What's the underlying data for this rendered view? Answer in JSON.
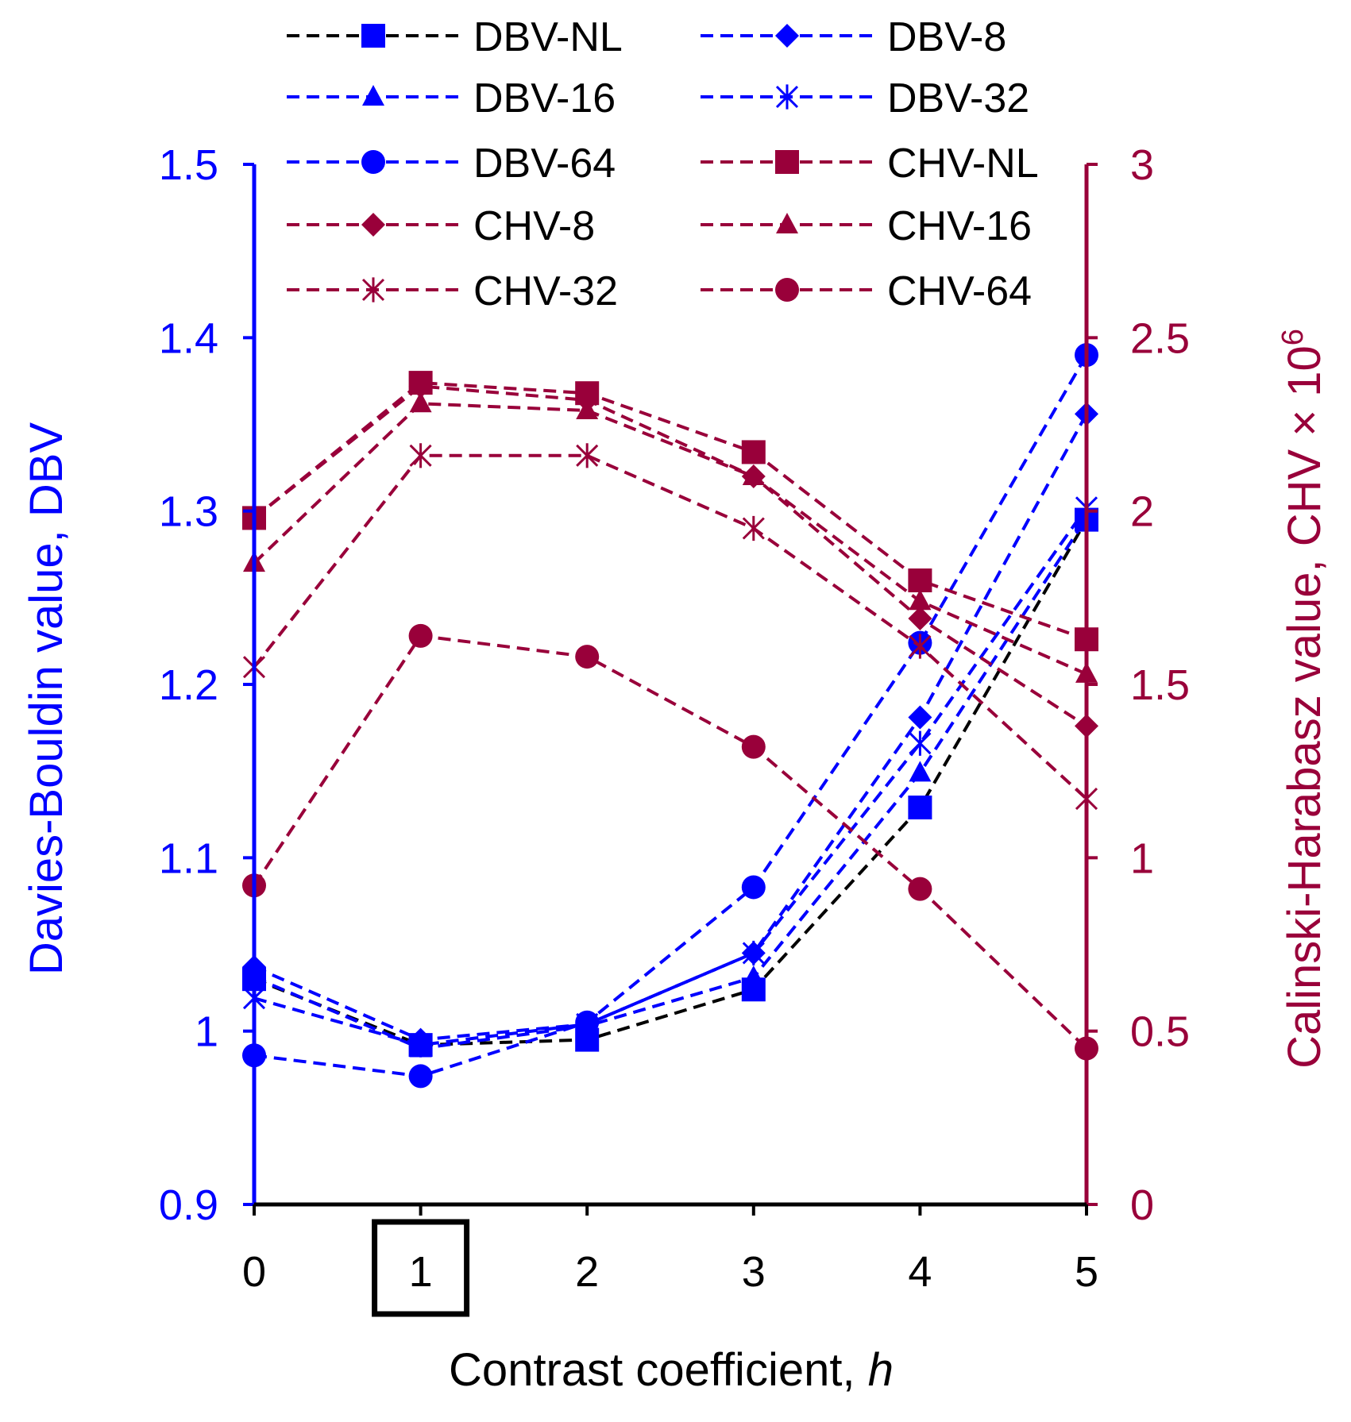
{
  "chart_data": {
    "type": "line",
    "title": "",
    "xlabel": "Contrast coefficient, ",
    "xlabel_italic": "h",
    "ylabel_left": "Davies-Bouldin value, DBV",
    "ylabel_right": "Calinski-Harabasz value, CHV × 10",
    "ylabel_right_sup": "6",
    "x": [
      0,
      1,
      2,
      3,
      4,
      5
    ],
    "x_ticks": [
      "0",
      "1",
      "2",
      "3",
      "4",
      "5"
    ],
    "highlighted_x_tick": "1",
    "ylim_left": [
      0.9,
      1.5
    ],
    "y_ticks_left": [
      "0.9",
      "1",
      "1.1",
      "1.2",
      "1.3",
      "1.4",
      "1.5"
    ],
    "ylim_right": [
      0,
      3
    ],
    "y_ticks_right": [
      "0",
      "0.5",
      "1",
      "1.5",
      "2",
      "2.5",
      "3"
    ],
    "grid": false,
    "legend_position": "top",
    "colors": {
      "dbv": "#0000ff",
      "chv": "#99003a",
      "black": "#000000"
    },
    "series": [
      {
        "name": "DBV-NL",
        "axis": "left",
        "marker": "square",
        "line_color": "#000000",
        "marker_color": "#0000ff",
        "values": [
          1.03,
          0.992,
          0.995,
          1.024,
          1.129,
          1.295
        ]
      },
      {
        "name": "DBV-8",
        "axis": "left",
        "marker": "diamond",
        "line_color": "#0000ff",
        "marker_color": "#0000ff",
        "values": [
          1.037,
          0.995,
          1.004,
          1.045,
          1.181,
          1.356
        ]
      },
      {
        "name": "DBV-16",
        "axis": "left",
        "marker": "triangle",
        "line_color": "#0000ff",
        "marker_color": "#0000ff",
        "values": [
          1.031,
          0.99,
          1.003,
          1.031,
          1.149,
          1.296
        ]
      },
      {
        "name": "DBV-32",
        "axis": "left",
        "marker": "asterisk",
        "line_color": "#0000ff",
        "marker_color": "#0000ff",
        "values": [
          1.019,
          0.992,
          1.004,
          1.045,
          1.166,
          1.302
        ]
      },
      {
        "name": "DBV-64",
        "axis": "left",
        "marker": "circle",
        "line_color": "#0000ff",
        "marker_color": "#0000ff",
        "values": [
          0.986,
          0.974,
          1.005,
          1.083,
          1.224,
          1.39
        ]
      },
      {
        "name": "CHV-NL",
        "axis": "right",
        "marker": "square",
        "line_color": "#99003a",
        "marker_color": "#99003a",
        "values": [
          1.98,
          2.37,
          2.34,
          2.17,
          1.8,
          1.63
        ]
      },
      {
        "name": "CHV-8",
        "axis": "right",
        "marker": "diamond",
        "line_color": "#99003a",
        "marker_color": "#99003a",
        "values": [
          1.98,
          2.36,
          2.32,
          2.1,
          1.69,
          1.38
        ]
      },
      {
        "name": "CHV-16",
        "axis": "right",
        "marker": "triangle",
        "line_color": "#99003a",
        "marker_color": "#99003a",
        "values": [
          1.85,
          2.31,
          2.29,
          2.1,
          1.74,
          1.53
        ]
      },
      {
        "name": "CHV-32",
        "axis": "right",
        "marker": "asterisk",
        "line_color": "#99003a",
        "marker_color": "#99003a",
        "values": [
          1.55,
          2.16,
          2.16,
          1.95,
          1.61,
          1.17
        ]
      },
      {
        "name": "CHV-64",
        "axis": "right",
        "marker": "circle",
        "line_color": "#99003a",
        "marker_color": "#99003a",
        "values": [
          0.92,
          1.64,
          1.58,
          1.32,
          0.91,
          0.45
        ]
      }
    ]
  }
}
